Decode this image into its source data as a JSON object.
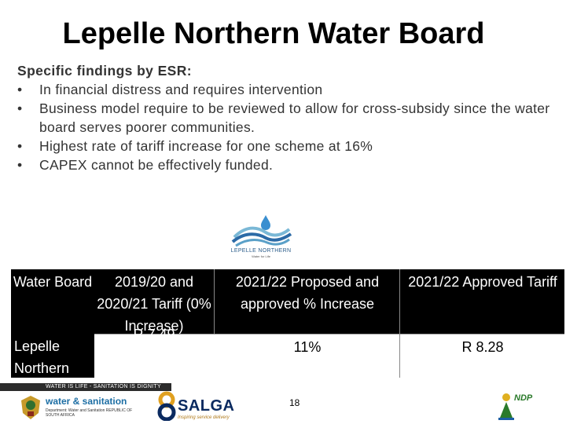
{
  "title": "Lepelle Northern Water Board",
  "findings": {
    "heading": "Specific findings by ESR:",
    "bullet_symbol": "•",
    "items": [
      "In financial distress and requires intervention",
      "Business model require to be reviewed to allow for cross-subsidy since the water board serves poorer communities.",
      "Highest rate of tariff increase for one scheme at 16%",
      "CAPEX cannot be effectively funded."
    ]
  },
  "logo": {
    "name": "LEPELLE NORTHERN",
    "sub": "Water for Life"
  },
  "table": {
    "headers": [
      "Water Board",
      "2019/20 and 2020/21 Tariff (0% Increase)",
      "2021/22 Proposed and approved % Increase",
      "2021/22 Approved Tariff"
    ],
    "rows": [
      {
        "board": "Lepelle Northern",
        "tariff_2019_2021": "R 7.49",
        "increase": "11%",
        "approved_tariff": "R 8.28"
      }
    ]
  },
  "footer": {
    "slogan": "WATER IS LIFE - SANITATION IS DIGNITY",
    "dws_main": "water & sanitation",
    "dws_sub": "Department: Water and Sanitation REPUBLIC OF SOUTH AFRICA",
    "salga_name": "SALGA",
    "salga_tag": "Inspiring service delivery",
    "page_number": "18",
    "ndp_text": "NDP"
  }
}
